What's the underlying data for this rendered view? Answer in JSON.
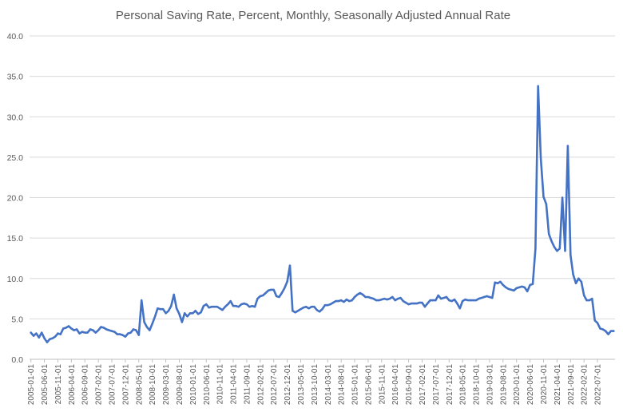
{
  "chart_data": {
    "type": "line",
    "title": "Personal Saving Rate, Percent, Monthly, Seasonally Adjusted Annual Rate",
    "xlabel": "",
    "ylabel": "",
    "ylim": [
      0,
      40
    ],
    "yticks": [
      "0.0",
      "5.0",
      "10.0",
      "15.0",
      "20.0",
      "25.0",
      "30.0",
      "35.0",
      "40.0"
    ],
    "grid": "horizontal",
    "legend": "none",
    "line_color": "#4472C4",
    "xticks": [
      "2005-01-01",
      "2005-06-01",
      "2005-11-01",
      "2006-04-01",
      "2006-09-01",
      "2007-02-01",
      "2007-07-01",
      "2007-12-01",
      "2008-05-01",
      "2008-10-01",
      "2009-03-01",
      "2009-08-01",
      "2010-01-01",
      "2010-06-01",
      "2010-11-01",
      "2011-04-01",
      "2011-09-01",
      "2012-02-01",
      "2012-07-01",
      "2012-12-01",
      "2013-05-01",
      "2013-10-01",
      "2014-03-01",
      "2014-08-01",
      "2015-01-01",
      "2015-06-01",
      "2015-11-01",
      "2016-04-01",
      "2016-09-01",
      "2017-02-01",
      "2017-07-01",
      "2017-12-01",
      "2018-05-01",
      "2018-10-01",
      "2019-03-01",
      "2019-08-01",
      "2020-01-01",
      "2020-06-01",
      "2020-11-01",
      "2021-04-01",
      "2021-09-01",
      "2022-02-01",
      "2022-07-01"
    ],
    "values": [
      3.3,
      2.9,
      3.2,
      2.7,
      3.3,
      2.6,
      2.1,
      2.5,
      2.6,
      2.8,
      3.2,
      3.1,
      3.8,
      3.9,
      4.1,
      3.8,
      3.6,
      3.7,
      3.2,
      3.4,
      3.3,
      3.3,
      3.7,
      3.6,
      3.3,
      3.6,
      4.0,
      3.9,
      3.7,
      3.6,
      3.5,
      3.4,
      3.1,
      3.1,
      3.0,
      2.8,
      3.2,
      3.3,
      3.7,
      3.6,
      3.0,
      7.3,
      4.6,
      4.0,
      3.6,
      4.4,
      5.3,
      6.3,
      6.2,
      6.2,
      5.7,
      6.0,
      6.6,
      8.0,
      6.3,
      5.6,
      4.6,
      5.7,
      5.3,
      5.7,
      5.7,
      6.0,
      5.6,
      5.8,
      6.6,
      6.8,
      6.4,
      6.5,
      6.5,
      6.5,
      6.3,
      6.1,
      6.5,
      6.8,
      7.2,
      6.6,
      6.6,
      6.5,
      6.8,
      6.9,
      6.8,
      6.5,
      6.6,
      6.5,
      7.5,
      7.8,
      7.9,
      8.2,
      8.5,
      8.6,
      8.6,
      7.8,
      7.7,
      8.2,
      8.8,
      9.6,
      11.6,
      6.0,
      5.8,
      6.0,
      6.2,
      6.4,
      6.5,
      6.3,
      6.5,
      6.5,
      6.1,
      5.9,
      6.2,
      6.7,
      6.7,
      6.8,
      7.0,
      7.2,
      7.2,
      7.3,
      7.1,
      7.4,
      7.2,
      7.3,
      7.7,
      8.0,
      8.2,
      8.0,
      7.7,
      7.7,
      7.6,
      7.5,
      7.3,
      7.3,
      7.4,
      7.5,
      7.4,
      7.5,
      7.7,
      7.3,
      7.5,
      7.6,
      7.2,
      7.0,
      6.8,
      6.9,
      6.9,
      6.9,
      7.0,
      7.0,
      6.5,
      6.9,
      7.3,
      7.3,
      7.3,
      7.9,
      7.5,
      7.6,
      7.7,
      7.3,
      7.2,
      7.4,
      6.9,
      6.3,
      7.2,
      7.4,
      7.3,
      7.3,
      7.3,
      7.3,
      7.5,
      7.6,
      7.7,
      7.8,
      7.7,
      7.6,
      9.5,
      9.4,
      9.6,
      9.2,
      8.9,
      8.7,
      8.6,
      8.5,
      8.8,
      8.9,
      9.0,
      8.9,
      8.4,
      9.2,
      9.3,
      13.7,
      33.8,
      24.8,
      20.1,
      19.2,
      15.5,
      14.6,
      13.9,
      13.4,
      13.7,
      20.0,
      13.4,
      26.4,
      12.9,
      10.5,
      9.4,
      10.0,
      9.6,
      7.9,
      7.3,
      7.3,
      7.5,
      4.8,
      4.5,
      3.8,
      3.7,
      3.5,
      3.1,
      3.5,
      3.5
    ]
  }
}
